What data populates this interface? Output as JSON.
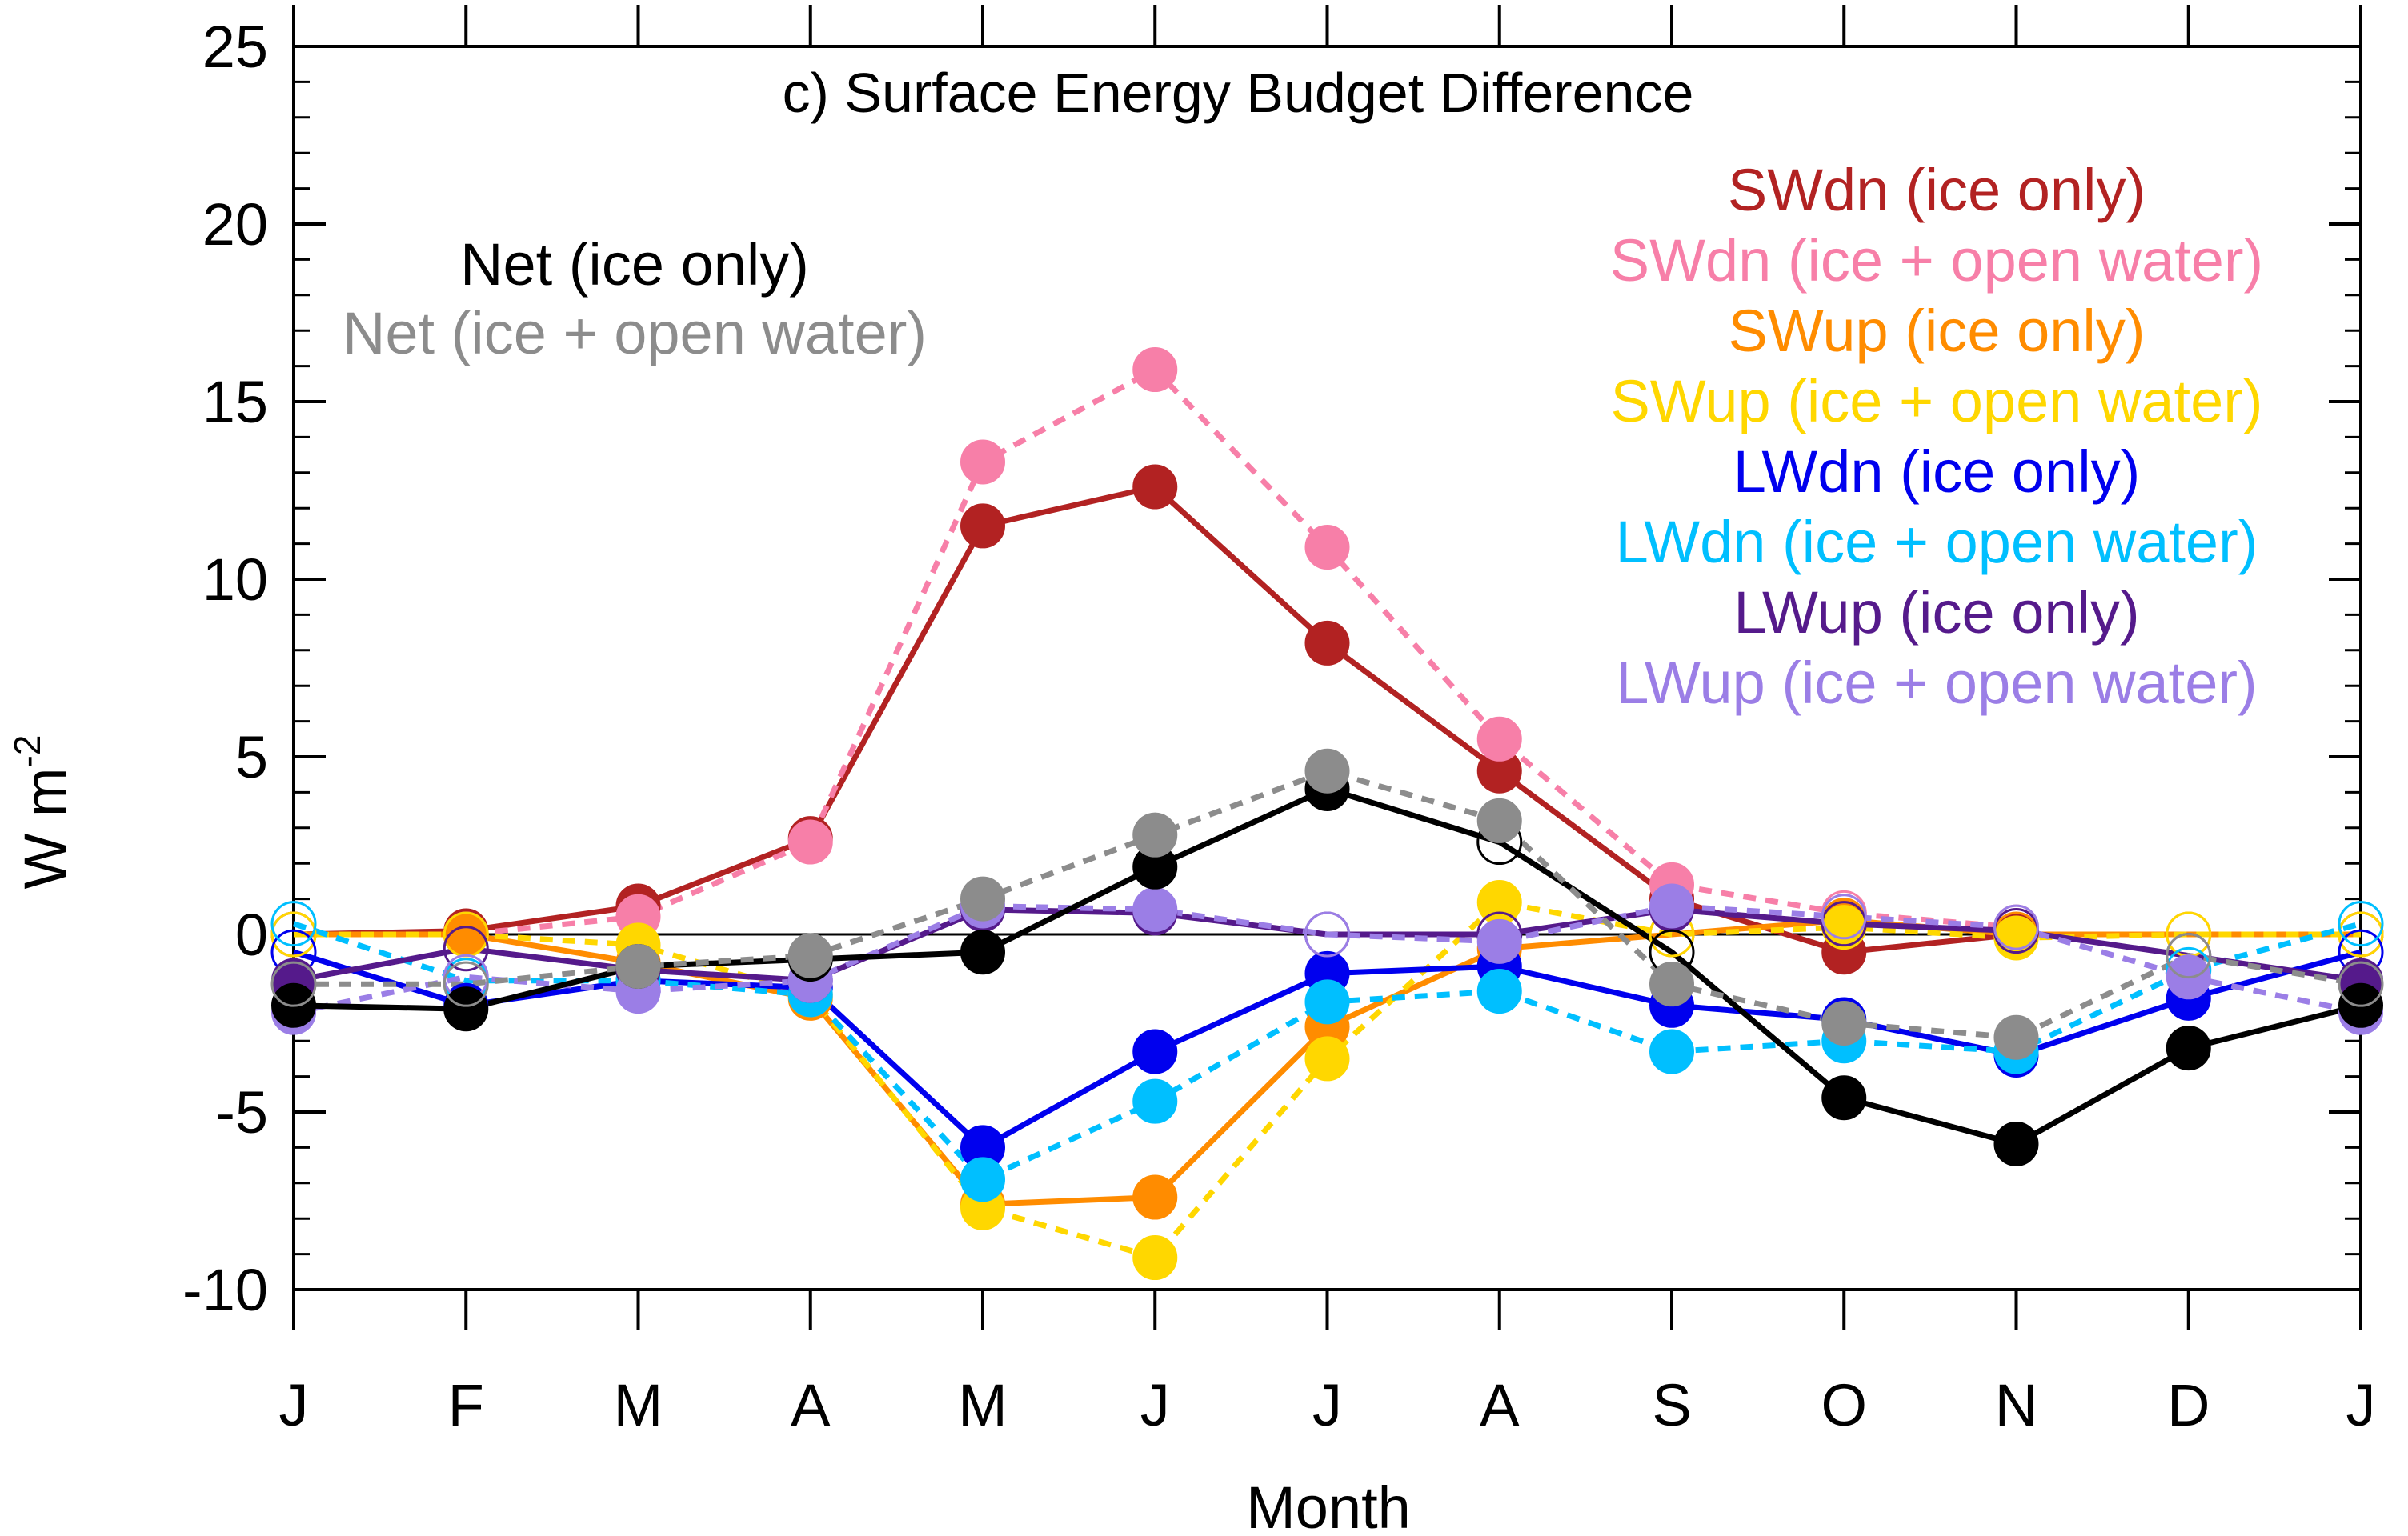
{
  "chart_data": {
    "type": "line",
    "title": "c) Surface Energy Budget Difference",
    "xlabel": "Month",
    "ylabel": "W m",
    "ylabel_superscript": "-2",
    "categories": [
      "J",
      "F",
      "M",
      "A",
      "M",
      "J",
      "J",
      "A",
      "S",
      "O",
      "N",
      "D",
      "J"
    ],
    "ylim": [
      -10,
      25
    ],
    "yticks": [
      -10,
      -5,
      0,
      5,
      10,
      15,
      20,
      25
    ],
    "zero_line": true,
    "series": [
      {
        "name": "SWdn (ice only)",
        "color": "#b22222",
        "dashed": false,
        "values": [
          0,
          0.1,
          0.8,
          2.7,
          11.5,
          12.6,
          8.2,
          4.6,
          1.0,
          -0.5,
          0,
          null,
          0
        ],
        "hollow": [
          true,
          false,
          false,
          false,
          false,
          false,
          false,
          false,
          false,
          false,
          false,
          false,
          true
        ]
      },
      {
        "name": "SWdn (ice + open water)",
        "color": "#f77fa8",
        "dashed": true,
        "values": [
          0,
          0,
          0.5,
          2.6,
          13.3,
          15.9,
          10.9,
          5.5,
          1.4,
          0.6,
          0.2,
          null,
          0
        ],
        "hollow": [
          true,
          true,
          false,
          false,
          false,
          false,
          false,
          false,
          false,
          true,
          true,
          false,
          true
        ]
      },
      {
        "name": "SWup (ice only)",
        "color": "#ff8c00",
        "dashed": false,
        "values": [
          0,
          0,
          -0.8,
          -1.8,
          -7.6,
          -7.4,
          -2.6,
          -0.4,
          0,
          0.4,
          0,
          0,
          0
        ],
        "hollow": [
          true,
          false,
          false,
          false,
          false,
          false,
          false,
          false,
          true,
          false,
          true,
          true,
          true
        ]
      },
      {
        "name": "SWup (ice + open water)",
        "color": "#ffd700",
        "dashed": true,
        "values": [
          0,
          0,
          -0.3,
          -1.7,
          -7.7,
          -9.1,
          -3.5,
          0.9,
          0,
          0.2,
          -0.1,
          0,
          0
        ],
        "hollow": [
          true,
          true,
          false,
          false,
          false,
          false,
          false,
          false,
          true,
          false,
          false,
          true,
          true
        ]
      },
      {
        "name": "LWdn (ice only)",
        "color": "#0000ee",
        "dashed": false,
        "values": [
          -0.5,
          -2.0,
          -1.3,
          -1.5,
          -6.0,
          -3.3,
          -1.1,
          -0.9,
          -2.0,
          -2.4,
          -3.4,
          -1.8,
          -0.5
        ],
        "hollow": [
          true,
          false,
          false,
          false,
          false,
          false,
          false,
          false,
          false,
          false,
          false,
          false,
          true
        ]
      },
      {
        "name": "LWdn (ice + open water)",
        "color": "#00bfff",
        "dashed": true,
        "values": [
          0.3,
          -1.3,
          -1.3,
          -1.7,
          -6.9,
          -4.7,
          -1.9,
          -1.6,
          -3.3,
          -3.0,
          -3.3,
          -1.0,
          0.3
        ],
        "hollow": [
          true,
          true,
          false,
          false,
          false,
          false,
          false,
          false,
          false,
          false,
          false,
          true,
          true
        ]
      },
      {
        "name": "LWup (ice only)",
        "color": "#551a8b",
        "dashed": false,
        "values": [
          -1.3,
          -0.4,
          -1.0,
          -1.3,
          0.7,
          0.6,
          0,
          0,
          0.7,
          0.3,
          0.1,
          -0.6,
          -1.3
        ],
        "hollow": [
          false,
          true,
          false,
          false,
          false,
          false,
          true,
          true,
          false,
          true,
          true,
          true,
          false
        ]
      },
      {
        "name": "LWup (ice + open water)",
        "color": "#9b7ee6",
        "dashed": true,
        "values": [
          -2.2,
          -1.2,
          -1.6,
          -1.3,
          0.8,
          0.7,
          0,
          -0.2,
          0.8,
          0.5,
          0.2,
          -1.2,
          -2.2
        ],
        "hollow": [
          false,
          true,
          false,
          false,
          false,
          false,
          true,
          false,
          false,
          true,
          true,
          false,
          false
        ]
      },
      {
        "name": "Net (ice only)",
        "color": "#000000",
        "dashed": false,
        "values": [
          -2.0,
          -2.1,
          -0.9,
          -0.7,
          -0.5,
          1.9,
          4.1,
          2.6,
          -0.5,
          -4.6,
          -5.9,
          -3.2,
          -2.0
        ],
        "hollow": [
          false,
          false,
          false,
          false,
          false,
          false,
          false,
          true,
          true,
          false,
          false,
          false,
          false
        ]
      },
      {
        "name": "Net (ice + open water)",
        "color": "#8c8c8c",
        "dashed": true,
        "values": [
          -1.4,
          -1.4,
          -0.9,
          -0.6,
          1.0,
          2.8,
          4.6,
          3.2,
          -1.4,
          -2.5,
          -2.9,
          -0.6,
          -1.4
        ],
        "hollow": [
          true,
          true,
          false,
          false,
          false,
          false,
          false,
          false,
          false,
          false,
          false,
          true,
          true
        ]
      }
    ],
    "legend_right": [
      {
        "label": "SWdn (ice only)",
        "color": "#b22222"
      },
      {
        "label": "SWdn (ice + open water)",
        "color": "#f77fa8"
      },
      {
        "label": "SWup (ice only)",
        "color": "#ff8c00"
      },
      {
        "label": "SWup (ice + open water)",
        "color": "#ffd700"
      },
      {
        "label": "LWdn (ice only)",
        "color": "#0000ee"
      },
      {
        "label": "LWdn (ice + open water)",
        "color": "#00bfff"
      },
      {
        "label": "LWup (ice only)",
        "color": "#551a8b"
      },
      {
        "label": "LWup (ice + open water)",
        "color": "#9b7ee6"
      }
    ],
    "legend_left": [
      {
        "label": "Net (ice only)",
        "color": "#000000"
      },
      {
        "label": "Net (ice + open water)",
        "color": "#8c8c8c"
      }
    ]
  }
}
